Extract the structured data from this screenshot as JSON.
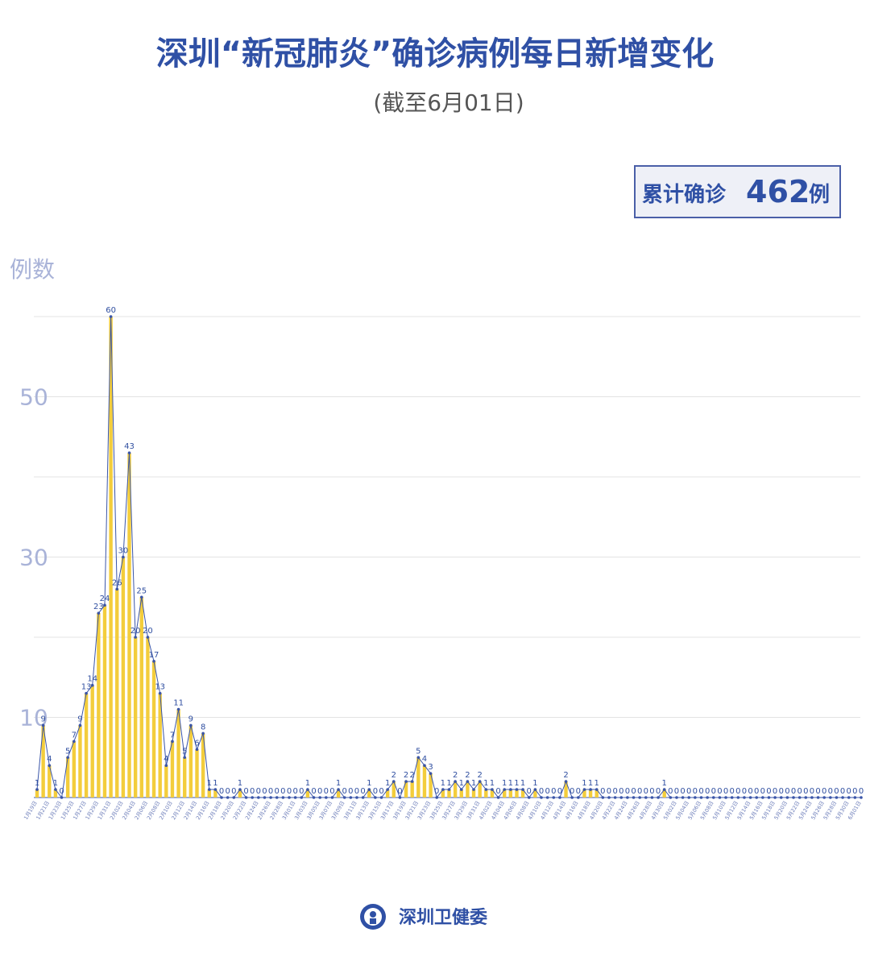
{
  "chart_data": {
    "type": "area",
    "title": "深圳“新冠肺炎”确诊病例每日新增变化",
    "subtitle": "(截至6月01日)",
    "total_label": "累计确诊",
    "total": 462,
    "total_unit": "例",
    "y_label": "例数",
    "source": "深圳卫健委",
    "categories": [
      "1月19日",
      null,
      "1月21日",
      null,
      "1月23日",
      null,
      "1月25日",
      null,
      "1月27日",
      null,
      "1月29日",
      null,
      "1月31日",
      null,
      "2月02日",
      null,
      "2月04日",
      null,
      "2月06日",
      null,
      "2月08日",
      null,
      "2月10日",
      null,
      "2月12日",
      null,
      "2月14日",
      null,
      "2月16日",
      null,
      "2月18日",
      null,
      "2月20日",
      null,
      "2月22日",
      null,
      "2月24日",
      null,
      "2月26日",
      null,
      "2月28日",
      null,
      "3月01日",
      null,
      "3月03日",
      null,
      "3月05日",
      null,
      "3月07日",
      null,
      "3月09日",
      null,
      "3月11日",
      null,
      "3月13日",
      null,
      "3月15日",
      null,
      "3月17日",
      null,
      "3月19日",
      null,
      "3月21日",
      null,
      "3月23日",
      null,
      "3月25日",
      null,
      "3月27日",
      null,
      "3月29日",
      null,
      "3月31日",
      null,
      "4月02日",
      null,
      "4月04日",
      null,
      "4月06日",
      null,
      "4月08日",
      null,
      "4月10日",
      null,
      "4月12日",
      null,
      "4月14日",
      null,
      "4月16日",
      null,
      "4月18日",
      null,
      "4月20日",
      null,
      "4月22日",
      null,
      "4月24日",
      null,
      "4月26日",
      null,
      "4月28日",
      null,
      "4月30日",
      null,
      "5月02日",
      null,
      "5月04日",
      null,
      "5月06日",
      null,
      "5月08日",
      null,
      "5月10日",
      null,
      "5月12日",
      null,
      "5月14日",
      null,
      "5月16日",
      null,
      "5月18日",
      null,
      "5月20日",
      null,
      "5月22日",
      null,
      "5月24日",
      null,
      "5月26日",
      null,
      "5月28日",
      null,
      "5月30日",
      null,
      "6月01日"
    ],
    "values": [
      1,
      9,
      4,
      1,
      0,
      5,
      7,
      9,
      13,
      14,
      23,
      24,
      60,
      26,
      30,
      43,
      20,
      25,
      20,
      17,
      13,
      4,
      7,
      11,
      5,
      9,
      6,
      8,
      1,
      1,
      0,
      0,
      0,
      1,
      0,
      0,
      0,
      0,
      0,
      0,
      0,
      0,
      0,
      0,
      1,
      0,
      0,
      0,
      0,
      1,
      0,
      0,
      0,
      0,
      1,
      0,
      0,
      1,
      2,
      0,
      2,
      2,
      5,
      4,
      3,
      0,
      1,
      1,
      2,
      1,
      2,
      1,
      2,
      1,
      1,
      0,
      1,
      1,
      1,
      1,
      0,
      1,
      0,
      0,
      0,
      0,
      2,
      0,
      0,
      1,
      1,
      1,
      0,
      0,
      0,
      0,
      0,
      0,
      0,
      0,
      0,
      0,
      1,
      0,
      0,
      0,
      0,
      0,
      0,
      0,
      0,
      0,
      0,
      0,
      0,
      0,
      0,
      0,
      0,
      0,
      0,
      0,
      0,
      0,
      0,
      0,
      0,
      0,
      0,
      0,
      0,
      0,
      0,
      0,
      0
    ],
    "bar_color": "#f3cd3c",
    "line_color": "#3a55a8",
    "ylim": [
      0,
      60
    ],
    "yticks": [
      {
        "value": 10,
        "label": "10"
      },
      {
        "value": 20,
        "label": null
      },
      {
        "value": 30,
        "label": "30"
      },
      {
        "value": 40,
        "label": null
      },
      {
        "value": 50,
        "label": "50"
      },
      {
        "value": 60,
        "label": null
      }
    ],
    "grid": true
  }
}
